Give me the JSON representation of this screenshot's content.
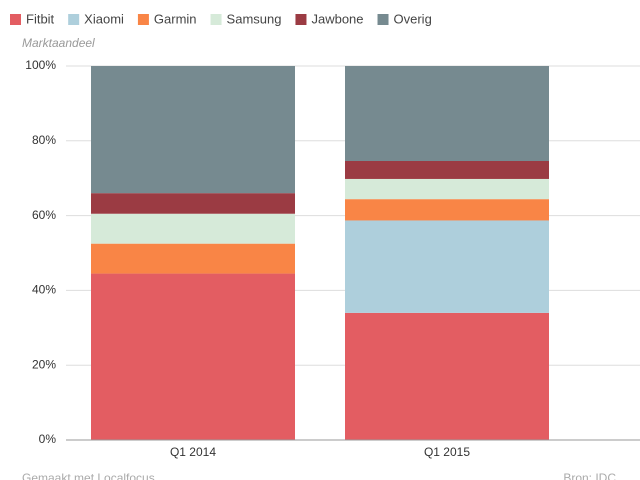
{
  "chart_data": {
    "type": "stacked-bar",
    "y_label": "Marktaandeel",
    "categories": [
      "Q1 2014",
      "Q1 2015"
    ],
    "series": [
      {
        "name": "Fitbit",
        "color": "#e35d62",
        "values": [
          44.5,
          34
        ]
      },
      {
        "name": "Xiaomi",
        "color": "#aecfdc",
        "values": [
          0,
          24.7
        ]
      },
      {
        "name": "Garmin",
        "color": "#f98546",
        "values": [
          8,
          5.7
        ]
      },
      {
        "name": "Samsung",
        "color": "#d6ead9",
        "values": [
          8,
          5.4
        ]
      },
      {
        "name": "Jawbone",
        "color": "#9b3b43",
        "values": [
          5.5,
          4.8
        ]
      },
      {
        "name": "Overig",
        "color": "#768a90",
        "values": [
          34,
          25.4
        ]
      }
    ],
    "ylim": [
      0,
      100
    ],
    "yticks": [
      {
        "value": 0,
        "label": "0%"
      },
      {
        "value": 20,
        "label": "20%"
      },
      {
        "value": 40,
        "label": "40%"
      },
      {
        "value": 60,
        "label": "60%"
      },
      {
        "value": 80,
        "label": "80%"
      },
      {
        "value": 100,
        "label": "100%"
      }
    ],
    "grid": true,
    "credit": "Gemaakt met Localfocus",
    "source": "Bron: IDC"
  }
}
